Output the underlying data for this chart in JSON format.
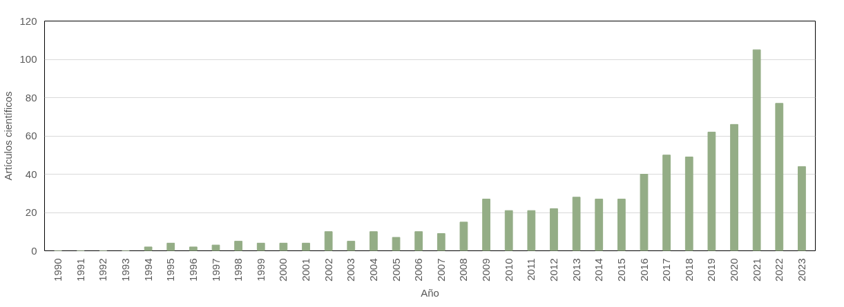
{
  "chart_data": {
    "type": "bar",
    "xlabel": "Año",
    "ylabel": "Artículos científicos",
    "categories": [
      "1990",
      "1991",
      "1992",
      "1993",
      "1994",
      "1995",
      "1996",
      "1997",
      "1998",
      "1999",
      "2000",
      "2001",
      "2002",
      "2003",
      "2004",
      "2005",
      "2006",
      "2007",
      "2008",
      "2009",
      "2010",
      "2011",
      "2012",
      "2013",
      "2014",
      "2015",
      "2016",
      "2017",
      "2018",
      "2019",
      "2020",
      "2021",
      "2022",
      "2023"
    ],
    "values": [
      0,
      0,
      0,
      0,
      2,
      4,
      2,
      3,
      5,
      4,
      4,
      4,
      10,
      5,
      10,
      7,
      10,
      9,
      15,
      27,
      21,
      21,
      22,
      28,
      27,
      27,
      40,
      50,
      49,
      62,
      66,
      105,
      77,
      44
    ],
    "color": "#94ad86",
    "ylim": [
      0,
      120
    ],
    "yticks": [
      0,
      20,
      40,
      60,
      80,
      100,
      120
    ],
    "grid": "y"
  }
}
